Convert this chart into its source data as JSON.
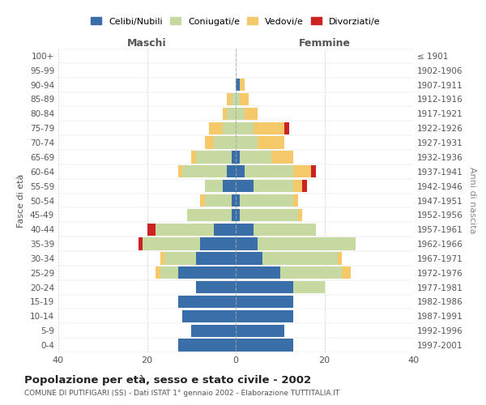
{
  "age_groups": [
    "0-4",
    "5-9",
    "10-14",
    "15-19",
    "20-24",
    "25-29",
    "30-34",
    "35-39",
    "40-44",
    "45-49",
    "50-54",
    "55-59",
    "60-64",
    "65-69",
    "70-74",
    "75-79",
    "80-84",
    "85-89",
    "90-94",
    "95-99",
    "100+"
  ],
  "birth_years": [
    "1997-2001",
    "1992-1996",
    "1987-1991",
    "1982-1986",
    "1977-1981",
    "1972-1976",
    "1967-1971",
    "1962-1966",
    "1957-1961",
    "1952-1956",
    "1947-1951",
    "1942-1946",
    "1937-1941",
    "1932-1936",
    "1927-1931",
    "1922-1926",
    "1917-1921",
    "1912-1916",
    "1907-1911",
    "1902-1906",
    "≤ 1901"
  ],
  "maschi": {
    "celibi": [
      13,
      10,
      12,
      13,
      9,
      13,
      9,
      8,
      5,
      1,
      1,
      3,
      2,
      1,
      0,
      0,
      0,
      0,
      0,
      0,
      0
    ],
    "coniugati": [
      0,
      0,
      0,
      0,
      0,
      4,
      7,
      13,
      13,
      10,
      6,
      4,
      10,
      8,
      5,
      3,
      2,
      1,
      0,
      0,
      0
    ],
    "vedovi": [
      0,
      0,
      0,
      0,
      0,
      1,
      1,
      0,
      0,
      0,
      1,
      0,
      1,
      1,
      2,
      3,
      1,
      1,
      0,
      0,
      0
    ],
    "divorziati": [
      0,
      0,
      0,
      0,
      0,
      0,
      0,
      1,
      2,
      0,
      0,
      0,
      0,
      0,
      0,
      0,
      0,
      0,
      0,
      0,
      0
    ]
  },
  "femmine": {
    "nubili": [
      13,
      11,
      13,
      13,
      13,
      10,
      6,
      5,
      4,
      1,
      1,
      4,
      2,
      1,
      0,
      0,
      0,
      0,
      1,
      0,
      0
    ],
    "coniugate": [
      0,
      0,
      0,
      0,
      7,
      14,
      17,
      22,
      14,
      13,
      12,
      9,
      11,
      7,
      5,
      4,
      2,
      1,
      0,
      0,
      0
    ],
    "vedove": [
      0,
      0,
      0,
      0,
      0,
      2,
      1,
      0,
      0,
      1,
      1,
      2,
      4,
      5,
      6,
      7,
      3,
      2,
      1,
      0,
      0
    ],
    "divorziate": [
      0,
      0,
      0,
      0,
      0,
      0,
      0,
      0,
      0,
      0,
      0,
      1,
      1,
      0,
      0,
      1,
      0,
      0,
      0,
      0,
      0
    ]
  },
  "colors": {
    "celibi": "#3a6ea8",
    "coniugati": "#c5d9a0",
    "vedovi": "#f5c96a",
    "divorziati": "#cc2222"
  },
  "xlim": [
    -40,
    40
  ],
  "xticks": [
    -40,
    -20,
    0,
    20,
    40
  ],
  "xticklabels": [
    "40",
    "20",
    "0",
    "20",
    "40"
  ],
  "title": "Popolazione per età, sesso e stato civile - 2002",
  "subtitle": "COMUNE DI PUTIFIGARI (SS) - Dati ISTAT 1° gennaio 2002 - Elaborazione TUTTITALIA.IT",
  "ylabel_left": "Fasce di età",
  "ylabel_right": "Anni di nascita",
  "header_maschi": "Maschi",
  "header_femmine": "Femmine",
  "legend_labels": [
    "Celibi/Nubili",
    "Coniugati/e",
    "Vedovi/e",
    "Divorziati/e"
  ],
  "background_color": "#ffffff",
  "grid_color": "#cccccc"
}
